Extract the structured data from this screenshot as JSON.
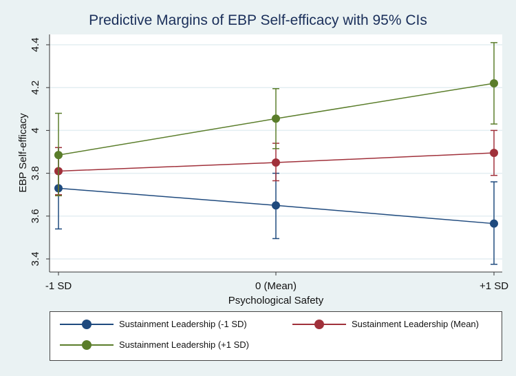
{
  "chart_data": {
    "type": "line",
    "title": "Predictive Margins of EBP Self-efficacy with 95% CIs",
    "xlabel": "Psychological Safety",
    "ylabel": "EBP Self-efficacy",
    "categories": [
      "-1 SD",
      "0 (Mean)",
      "+1 SD"
    ],
    "ylim": [
      3.35,
      4.45
    ],
    "yticks": [
      "3.4",
      "3.6",
      "3.8",
      "4",
      "4.2",
      "4.4"
    ],
    "ytick_values": [
      3.4,
      3.6,
      3.8,
      4.0,
      4.2,
      4.4
    ],
    "grid": true,
    "legend_position": "bottom",
    "series": [
      {
        "name": "Sustainment Leadership (-1 SD)",
        "color": "#1f4a7e",
        "values": [
          3.73,
          3.65,
          3.565
        ],
        "ci_low": [
          3.54,
          3.495,
          3.375
        ],
        "ci_high": [
          3.92,
          3.8,
          3.76
        ]
      },
      {
        "name": "Sustainment Leadership (Mean)",
        "color": "#a0303a",
        "values": [
          3.81,
          3.85,
          3.895
        ],
        "ci_low": [
          3.7,
          3.765,
          3.79
        ],
        "ci_high": [
          3.92,
          3.94,
          4.0
        ]
      },
      {
        "name": "Sustainment Leadership (+1 SD)",
        "color": "#5a7d2a",
        "values": [
          3.885,
          4.055,
          4.22
        ],
        "ci_low": [
          3.695,
          3.915,
          4.03
        ],
        "ci_high": [
          4.08,
          4.195,
          4.41
        ]
      }
    ]
  }
}
